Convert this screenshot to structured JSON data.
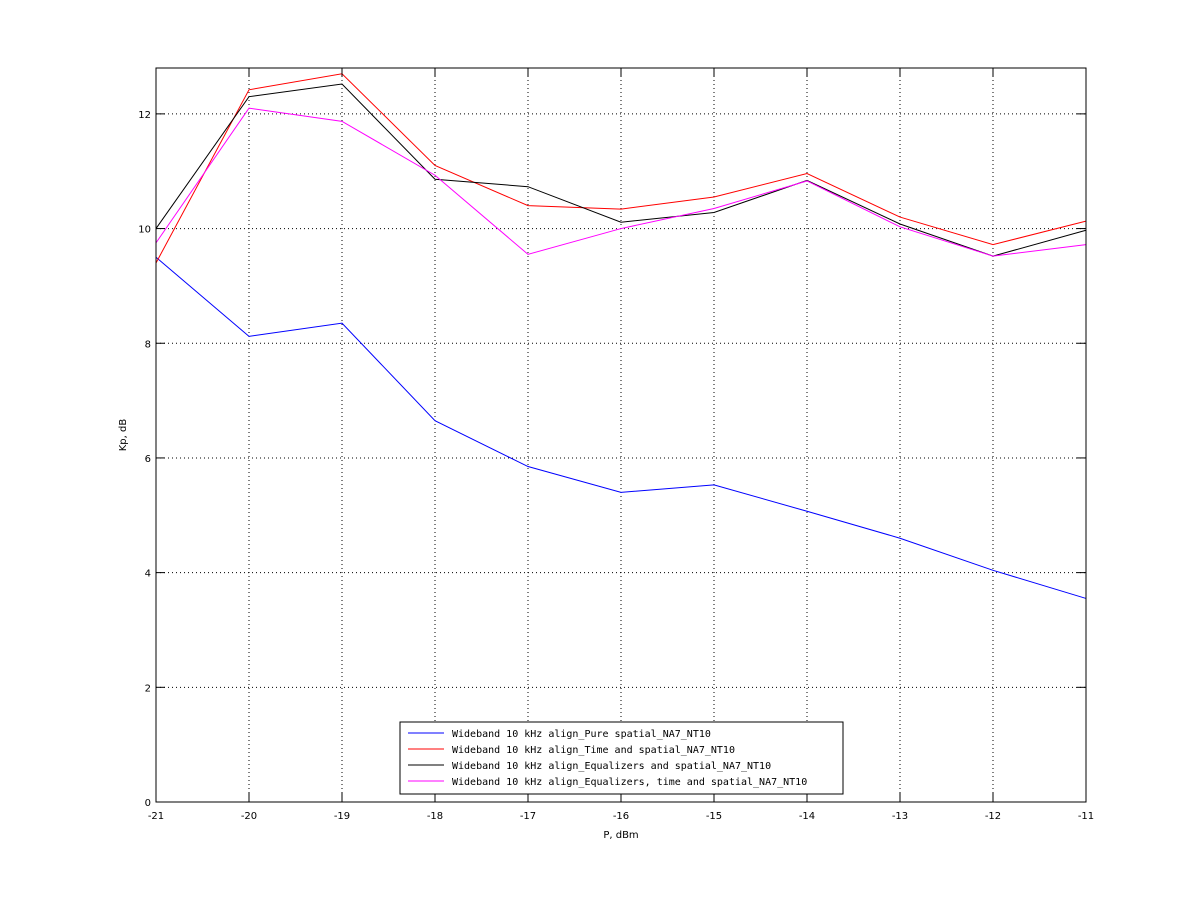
{
  "chart_data": {
    "type": "line",
    "title": "",
    "xlabel": "P, dBm",
    "ylabel": "Kp, dB",
    "xlim": [
      -21,
      -11
    ],
    "ylim": [
      0,
      12.8
    ],
    "xticks": [
      -21,
      -20,
      -19,
      -18,
      -17,
      -16,
      -15,
      -14,
      -13,
      -12,
      -11
    ],
    "yticks": [
      0,
      2,
      4,
      6,
      8,
      10,
      12
    ],
    "xtick_labels": [
      "-21",
      "-20",
      "-19",
      "-18",
      "-17",
      "-16",
      "-15",
      "-14",
      "-13",
      "-12",
      "-11"
    ],
    "ytick_labels": [
      "0",
      "2",
      "4",
      "6",
      "8",
      "10",
      "12"
    ],
    "grid": true,
    "legend_position": "bottom-center",
    "x": [
      -21,
      -20,
      -19,
      -18,
      -17,
      -16,
      -15,
      -14,
      -13,
      -12,
      -11
    ],
    "series": [
      {
        "name": "Wideband 10 kHz align_Pure spatial_NA7_NT10",
        "color": "#0000ff",
        "values": [
          9.5,
          8.12,
          8.35,
          6.65,
          5.85,
          5.4,
          5.53,
          5.07,
          4.6,
          4.04,
          3.55
        ]
      },
      {
        "name": "Wideband 10 kHz align_Time and spatial_NA7_NT10",
        "color": "#ff0000",
        "values": [
          9.4,
          12.42,
          12.7,
          11.1,
          10.4,
          10.34,
          10.55,
          10.96,
          10.2,
          9.72,
          10.13
        ]
      },
      {
        "name": "Wideband 10 kHz align_Equalizers and spatial_NA7_NT10",
        "color": "#000000",
        "values": [
          10.0,
          12.3,
          12.52,
          10.86,
          10.73,
          10.11,
          10.28,
          10.84,
          10.08,
          9.52,
          9.97
        ]
      },
      {
        "name": "Wideband 10 kHz align_Equalizers, time and spatial_NA7_NT10",
        "color": "#ff00ff",
        "values": [
          9.75,
          12.1,
          11.87,
          10.93,
          9.55,
          10.0,
          10.35,
          10.83,
          10.03,
          9.52,
          9.72
        ]
      }
    ]
  }
}
